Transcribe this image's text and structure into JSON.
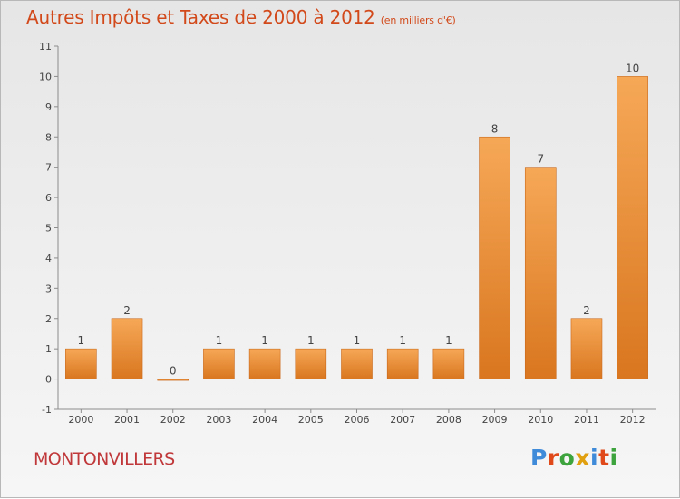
{
  "header": {
    "title": "Autres Impôts et Taxes de 2000 à 2012",
    "subtitle": "(en milliers d'€)"
  },
  "footer": {
    "commune": "MONTONVILLERS",
    "logo": "Proxiti"
  },
  "colors": {
    "title": "#d24a1b",
    "commune": "#c0383a",
    "bar_top": "#f6a857",
    "bar_bottom": "#d9761f",
    "logo_letters": [
      "#3f8ad9",
      "#e04a1a",
      "#3da43d",
      "#e0a010",
      "#3f8ad9",
      "#e04a1a",
      "#3da43d"
    ]
  },
  "chart_data": {
    "type": "bar",
    "categories": [
      "2000",
      "2001",
      "2002",
      "2003",
      "2004",
      "2005",
      "2006",
      "2007",
      "2008",
      "2009",
      "2010",
      "2011",
      "2012"
    ],
    "values": [
      1,
      2,
      0,
      1,
      1,
      1,
      1,
      1,
      1,
      8,
      7,
      2,
      10
    ],
    "value_labels": [
      "1",
      "2",
      "0",
      "1",
      "1",
      "1",
      "1",
      "1",
      "1",
      "8",
      "7",
      "2",
      "10"
    ],
    "ylim": [
      -1,
      11
    ],
    "yticks": [
      "-1",
      "0",
      "1",
      "2",
      "3",
      "4",
      "5",
      "6",
      "7",
      "8",
      "9",
      "10",
      "11"
    ],
    "grid": false
  }
}
